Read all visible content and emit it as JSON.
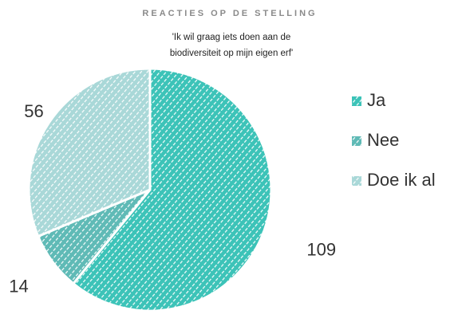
{
  "chart_data": {
    "type": "pie",
    "title": "REACTIES OP DE STELLING",
    "subtitle": [
      "'Ik wil graag iets doen aan de",
      "biodiversiteit op mijn eigen erf'"
    ],
    "categories": [
      "Ja",
      "Nee",
      "Doe ik al"
    ],
    "values": [
      109,
      14,
      56
    ],
    "colors": [
      "#3cc3b8",
      "#5fbab6",
      "#a9d8d8"
    ],
    "legend": "right"
  }
}
